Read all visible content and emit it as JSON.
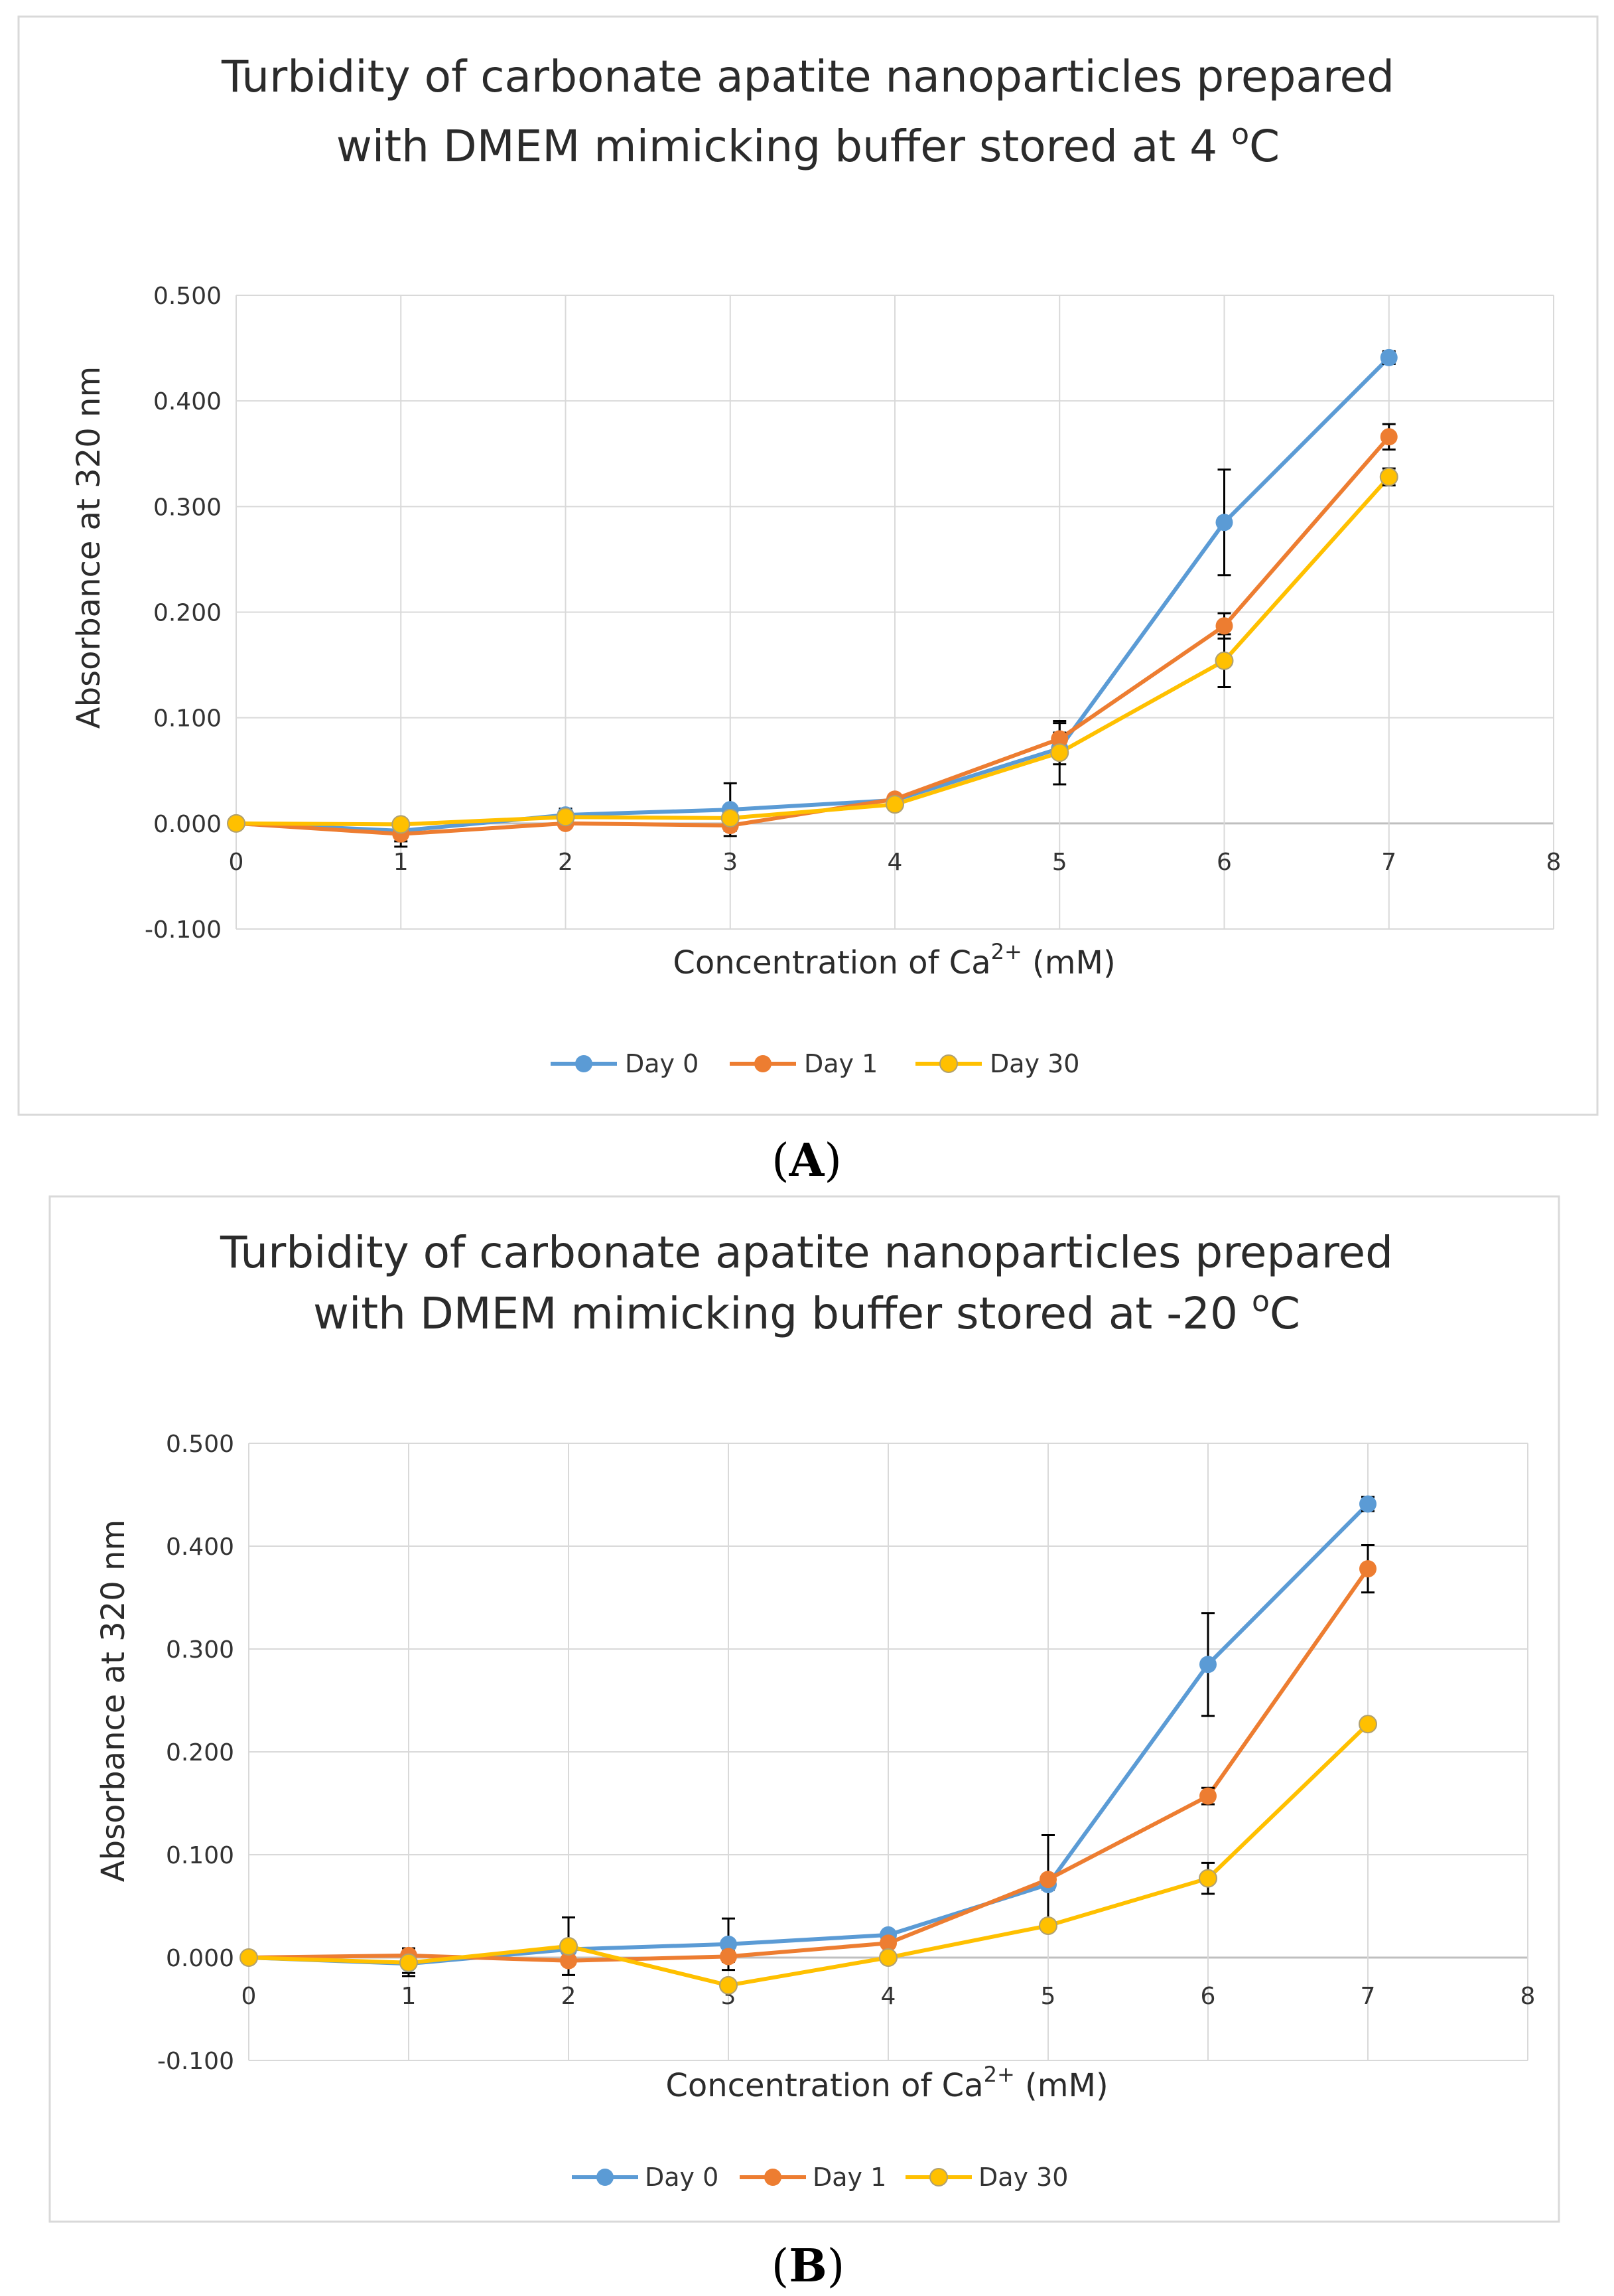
{
  "colors": {
    "day0": "#5B9BD5",
    "day1": "#ED7D31",
    "day30": "#FFC000",
    "day30_marker_edge": "#B0A070",
    "gridline": "#D9D9D9",
    "zero_axis": "#BFBFBF",
    "frame": "#D9D9D9",
    "error_bar": "#000000"
  },
  "chart_data": [
    {
      "type": "line",
      "panel_label": "A",
      "title": "Turbidity of carbonate apatite nanoparticles prepared",
      "title_line2_prefix": "with DMEM mimicking buffer stored at 4 ",
      "title_sup": "o",
      "title_suffix": "C",
      "xlabel_prefix": "Concentration of Ca",
      "xlabel_sup": "2+",
      "xlabel_suffix": " (mM)",
      "ylabel": "Absorbance at 320 nm",
      "xlim": [
        0,
        8
      ],
      "ylim": [
        -0.1,
        0.5
      ],
      "xticks": [
        "0",
        "1",
        "2",
        "3",
        "4",
        "5",
        "6",
        "7",
        "8"
      ],
      "yticks": [
        "0.500",
        "0.400",
        "0.300",
        "0.200",
        "0.100",
        "0.000",
        "-0.100"
      ],
      "x": [
        0,
        1,
        2,
        3,
        4,
        5,
        6,
        7
      ],
      "series": [
        {
          "name": "Day 0",
          "values": [
            0.0,
            -0.007,
            0.008,
            0.013,
            0.022,
            0.071,
            0.285,
            0.441
          ],
          "errors": [
            0,
            0.01,
            0.006,
            0.025,
            0.002,
            0.015,
            0.05,
            0.006
          ]
        },
        {
          "name": "Day 1",
          "values": [
            0.0,
            -0.01,
            0.0,
            -0.002,
            0.023,
            0.08,
            0.187,
            0.366
          ],
          "errors": [
            0,
            0.012,
            0.004,
            0.005,
            0.002,
            0.015,
            0.012,
            0.012
          ]
        },
        {
          "name": "Day 30",
          "values": [
            0.0,
            -0.001,
            0.006,
            0.005,
            0.018,
            0.067,
            0.154,
            0.328
          ],
          "errors": [
            0,
            0.003,
            0.005,
            0.006,
            0.002,
            0.03,
            0.025,
            0.008
          ]
        }
      ]
    },
    {
      "type": "line",
      "panel_label": "B",
      "title": "Turbidity of carbonate apatite nanoparticles prepared",
      "title_line2_prefix": "with DMEM mimicking buffer stored at -20 ",
      "title_sup": "o",
      "title_suffix": "C",
      "xlabel_prefix": "Concentration of Ca",
      "xlabel_sup": "2+",
      "xlabel_suffix": " (mM)",
      "ylabel": "Absorbance at 320 nm",
      "xlim": [
        0,
        8
      ],
      "ylim": [
        -0.1,
        0.5
      ],
      "xticks": [
        "0",
        "1",
        "2",
        "3",
        "4",
        "5",
        "6",
        "7",
        "8"
      ],
      "yticks": [
        "0.500",
        "0.400",
        "0.300",
        "0.200",
        "0.100",
        "0.000",
        "-0.100"
      ],
      "x": [
        0,
        1,
        2,
        3,
        4,
        5,
        6,
        7
      ],
      "series": [
        {
          "name": "Day 0",
          "values": [
            0.0,
            -0.006,
            0.008,
            0.013,
            0.022,
            0.071,
            0.285,
            0.441
          ],
          "errors": [
            0,
            0.012,
            0.004,
            0.025,
            0.002,
            0.005,
            0.05,
            0.007
          ]
        },
        {
          "name": "Day 1",
          "values": [
            0.0,
            0.002,
            -0.003,
            0.001,
            0.014,
            0.076,
            0.157,
            0.378
          ],
          "errors": [
            0,
            0.007,
            0.004,
            0.005,
            0.002,
            0.043,
            0.008,
            0.023
          ]
        },
        {
          "name": "Day 30",
          "values": [
            0.0,
            -0.005,
            0.011,
            -0.027,
            0.0,
            0.031,
            0.077,
            0.227
          ],
          "errors": [
            0,
            0.01,
            0.028,
            0.004,
            0.002,
            0.003,
            0.015,
            0.003
          ]
        }
      ]
    }
  ]
}
